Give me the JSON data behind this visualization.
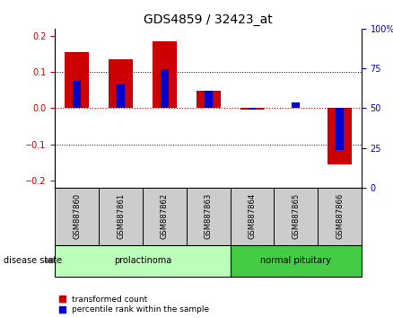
{
  "title": "GDS4859 / 32423_at",
  "samples": [
    "GSM887860",
    "GSM887861",
    "GSM887862",
    "GSM887863",
    "GSM887864",
    "GSM887865",
    "GSM887866"
  ],
  "red_values": [
    0.155,
    0.135,
    0.185,
    0.048,
    -0.005,
    0.002,
    -0.155
  ],
  "blue_values": [
    0.075,
    0.065,
    0.108,
    0.048,
    -0.005,
    0.015,
    -0.115
  ],
  "ylim": [
    -0.22,
    0.22
  ],
  "y2lim": [
    0,
    100
  ],
  "yticks_left": [
    -0.2,
    -0.1,
    0.0,
    0.1,
    0.2
  ],
  "yticks_right": [
    0,
    25,
    50,
    75,
    100
  ],
  "red_color": "#cc0000",
  "blue_color": "#0000cc",
  "zero_line_color": "#cc0000",
  "disease_groups": [
    {
      "label": "prolactinoma",
      "start": 0,
      "end": 3,
      "color": "#bbffbb"
    },
    {
      "label": "normal pituitary",
      "start": 4,
      "end": 6,
      "color": "#44cc44"
    }
  ],
  "disease_state_label": "disease state",
  "legend_red": "transformed count",
  "legend_blue": "percentile rank within the sample",
  "tick_label_size": 7,
  "title_fontsize": 10
}
